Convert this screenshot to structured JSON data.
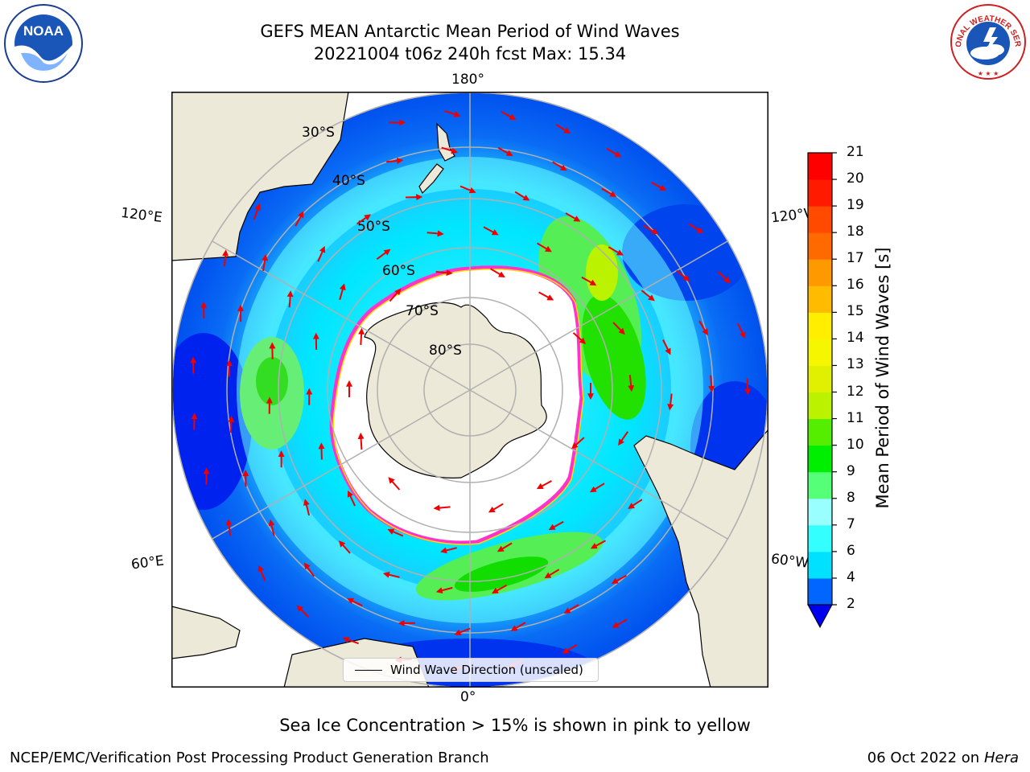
{
  "header": {
    "title_line1": "GEFS MEAN Antarctic Mean Period of Wind Waves",
    "title_line2": "20221004 t06z 240h fcst   Max: 15.34"
  },
  "map": {
    "projection": "south polar stereographic",
    "lon_labels": {
      "top": "180°",
      "bottom": "0°",
      "left_upper": "120°E",
      "left_lower": "60°E",
      "right_upper": "120°W",
      "right_lower": "60°W"
    },
    "lat_labels": [
      "30°S",
      "40°S",
      "50°S",
      "60°S",
      "70°S",
      "80°S"
    ],
    "legend_label": "Wind Wave Direction (unscaled)",
    "colors": {
      "land": "#ede9d8",
      "sea_ice": "#ffffff",
      "ice_edge_pink": "#ff33cc",
      "ice_edge_yellow": "#ffdd00",
      "arrow": "#ee0000",
      "grid": "#b0b0b0"
    }
  },
  "colorbar": {
    "label": "Mean Period of Wind Waves [s]",
    "ticks": [
      "2",
      "4",
      "6",
      "7",
      "8",
      "9",
      "10",
      "11",
      "12",
      "13",
      "14",
      "15",
      "16",
      "17",
      "18",
      "19",
      "20",
      "21"
    ],
    "colors": [
      "#0066ff",
      "#00e0ff",
      "#33ffff",
      "#99ffff",
      "#55ff77",
      "#00ee00",
      "#55ee00",
      "#bbf200",
      "#e0f000",
      "#f6f600",
      "#ffee00",
      "#ffbb00",
      "#ff9900",
      "#ff6a00",
      "#ff4a00",
      "#ff1a00",
      "#ff0000"
    ],
    "extend_min_color": "#0000ee"
  },
  "notes": {
    "sea_ice_note": "Sea Ice Concentration > 15% is shown in pink to yellow"
  },
  "footer": {
    "left": "NCEP/EMC/Verification Post Processing Product Generation Branch",
    "right_date": "06 Oct 2022 on ",
    "right_host": "Hera"
  },
  "logos": {
    "noaa": "NOAA",
    "nws": "NATIONAL WEATHER SERVICE"
  }
}
